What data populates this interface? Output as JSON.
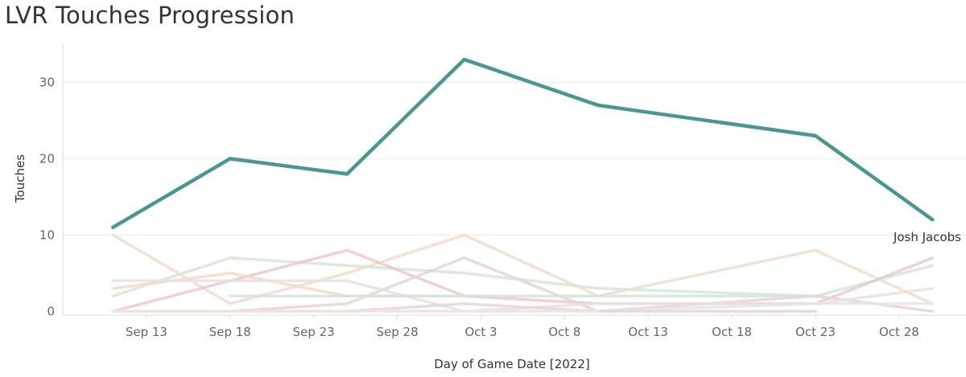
{
  "title": "LVR Touches Progression",
  "chart_data": {
    "type": "line",
    "xlabel": "Day of Game Date [2022]",
    "ylabel": "Touches",
    "ylim": [
      -0.5,
      35
    ],
    "xlim": [
      "2022-09-08",
      "2022-11-01"
    ],
    "x_tick_labels": [
      "Sep 13",
      "Sep 18",
      "Sep 23",
      "Sep 28",
      "Oct 3",
      "Oct 8",
      "Oct 13",
      "Oct 18",
      "Oct 23",
      "Oct 28"
    ],
    "y_tick_labels": [
      "0",
      "10",
      "20",
      "30"
    ],
    "y_ticks": [
      0,
      10,
      20,
      30
    ],
    "grid": "horizontal",
    "highlight": {
      "name": "Josh Jacobs",
      "color": "#4a9691",
      "points": [
        {
          "x": "2022-09-11",
          "y": 11
        },
        {
          "x": "2022-09-18",
          "y": 20
        },
        {
          "x": "2022-09-25",
          "y": 18
        },
        {
          "x": "2022-10-02",
          "y": 33
        },
        {
          "x": "2022-10-10",
          "y": 27
        },
        {
          "x": "2022-10-23",
          "y": 23
        },
        {
          "x": "2022-10-30",
          "y": 12
        }
      ]
    },
    "background_series": [
      {
        "color": "#f3dccb",
        "points": [
          {
            "x": "2022-09-11",
            "y": 10
          },
          {
            "x": "2022-09-18",
            "y": 1
          },
          {
            "x": "2022-09-25",
            "y": 5
          },
          {
            "x": "2022-10-02",
            "y": 10
          },
          {
            "x": "2022-10-10",
            "y": 2
          },
          {
            "x": "2022-10-23",
            "y": 8
          },
          {
            "x": "2022-10-30",
            "y": 1
          }
        ]
      },
      {
        "color": "#d5e6d5",
        "points": [
          {
            "x": "2022-09-11",
            "y": 2
          },
          {
            "x": "2022-09-18",
            "y": 7
          },
          {
            "x": "2022-09-25",
            "y": 6
          },
          {
            "x": "2022-10-02",
            "y": 5
          },
          {
            "x": "2022-10-10",
            "y": 3
          },
          {
            "x": "2022-10-23",
            "y": 2
          },
          {
            "x": "2022-10-30",
            "y": 6
          }
        ]
      },
      {
        "color": "#ecc9cd",
        "points": [
          {
            "x": "2022-09-11",
            "y": 0
          },
          {
            "x": "2022-09-18",
            "y": 4
          },
          {
            "x": "2022-09-25",
            "y": 8
          },
          {
            "x": "2022-10-02",
            "y": 2
          },
          {
            "x": "2022-10-10",
            "y": 1
          },
          {
            "x": "2022-10-23",
            "y": 1
          },
          {
            "x": "2022-10-30",
            "y": 7
          }
        ]
      },
      {
        "color": "#e8d3d6",
        "points": [
          {
            "x": "2022-09-11",
            "y": 0
          },
          {
            "x": "2022-09-18",
            "y": 0
          },
          {
            "x": "2022-09-25",
            "y": 1
          },
          {
            "x": "2022-10-02",
            "y": 7
          },
          {
            "x": "2022-10-10",
            "y": 0
          },
          {
            "x": "2022-10-23",
            "y": 2
          },
          {
            "x": "2022-10-30",
            "y": 0
          }
        ]
      },
      {
        "color": "#f3d9c4",
        "points": [
          {
            "x": "2022-09-11",
            "y": 3
          },
          {
            "x": "2022-09-18",
            "y": 5
          },
          {
            "x": "2022-09-25",
            "y": 2
          },
          {
            "x": "2022-10-02",
            "y": 2
          }
        ]
      },
      {
        "color": "#e7e2e0",
        "points": [
          {
            "x": "2022-09-11",
            "y": 4
          },
          {
            "x": "2022-09-18",
            "y": 4
          },
          {
            "x": "2022-09-25",
            "y": 4
          },
          {
            "x": "2022-10-02",
            "y": 0
          },
          {
            "x": "2022-10-10",
            "y": 1
          },
          {
            "x": "2022-10-23",
            "y": 1
          },
          {
            "x": "2022-10-30",
            "y": 3
          }
        ]
      },
      {
        "color": "#d5e4d6",
        "points": [
          {
            "x": "2022-09-18",
            "y": 2
          },
          {
            "x": "2022-09-25",
            "y": 2
          },
          {
            "x": "2022-10-02",
            "y": 2
          },
          {
            "x": "2022-10-10",
            "y": 2
          },
          {
            "x": "2022-10-23",
            "y": 2
          }
        ]
      },
      {
        "color": "#e5e8e2",
        "points": [
          {
            "x": "2022-09-11",
            "y": 0
          },
          {
            "x": "2022-09-18",
            "y": 0
          },
          {
            "x": "2022-09-25",
            "y": 0
          },
          {
            "x": "2022-10-02",
            "y": 0
          },
          {
            "x": "2022-10-10",
            "y": 0
          },
          {
            "x": "2022-10-23",
            "y": 1
          },
          {
            "x": "2022-10-30",
            "y": 1
          }
        ]
      },
      {
        "color": "#e6d4e0",
        "points": [
          {
            "x": "2022-09-11",
            "y": 0
          },
          {
            "x": "2022-09-18",
            "y": 0
          },
          {
            "x": "2022-09-25",
            "y": 0
          },
          {
            "x": "2022-10-02",
            "y": 1
          },
          {
            "x": "2022-10-10",
            "y": 0
          },
          {
            "x": "2022-10-23",
            "y": 0
          }
        ]
      },
      {
        "color": "#f0e6d6",
        "points": [
          {
            "x": "2022-09-11",
            "y": 0
          },
          {
            "x": "2022-09-18",
            "y": 0
          },
          {
            "x": "2022-09-25",
            "y": 0
          },
          {
            "x": "2022-10-02",
            "y": 0
          },
          {
            "x": "2022-10-10",
            "y": 0
          }
        ]
      }
    ]
  }
}
